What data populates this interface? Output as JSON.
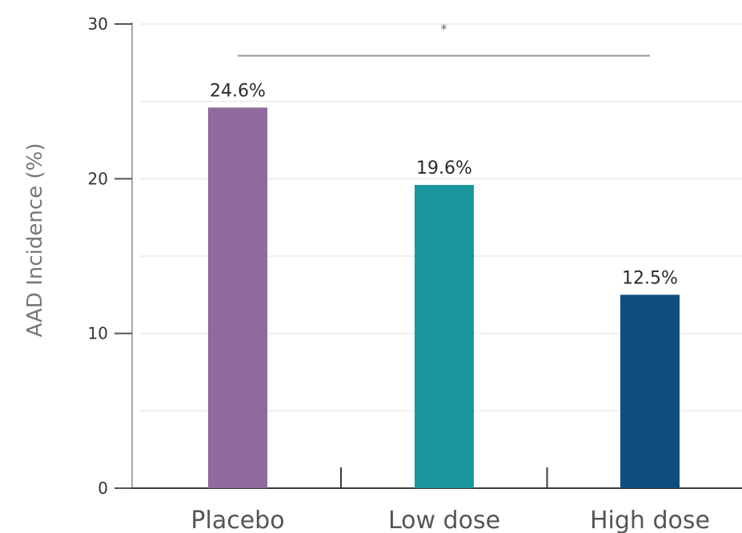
{
  "chart_data": {
    "type": "bar",
    "title": "",
    "xlabel": "",
    "ylabel": "AAD Incidence (%)",
    "ylim": [
      0,
      30
    ],
    "yticks": [
      0,
      10,
      20,
      30
    ],
    "ytick_labels": [
      "0",
      "10",
      "20",
      "30"
    ],
    "grid": true,
    "categories": [
      "Placebo",
      "Low dose",
      "High dose"
    ],
    "values": [
      24.6,
      19.6,
      12.5
    ],
    "data_labels": [
      "24.6%",
      "19.6%",
      "12.5%"
    ],
    "colors": [
      "#8f6a9e",
      "#1b969c",
      "#0f4e7c"
    ],
    "significance": {
      "from": "Placebo",
      "to": "High dose",
      "y": 28,
      "marker": "*"
    }
  }
}
